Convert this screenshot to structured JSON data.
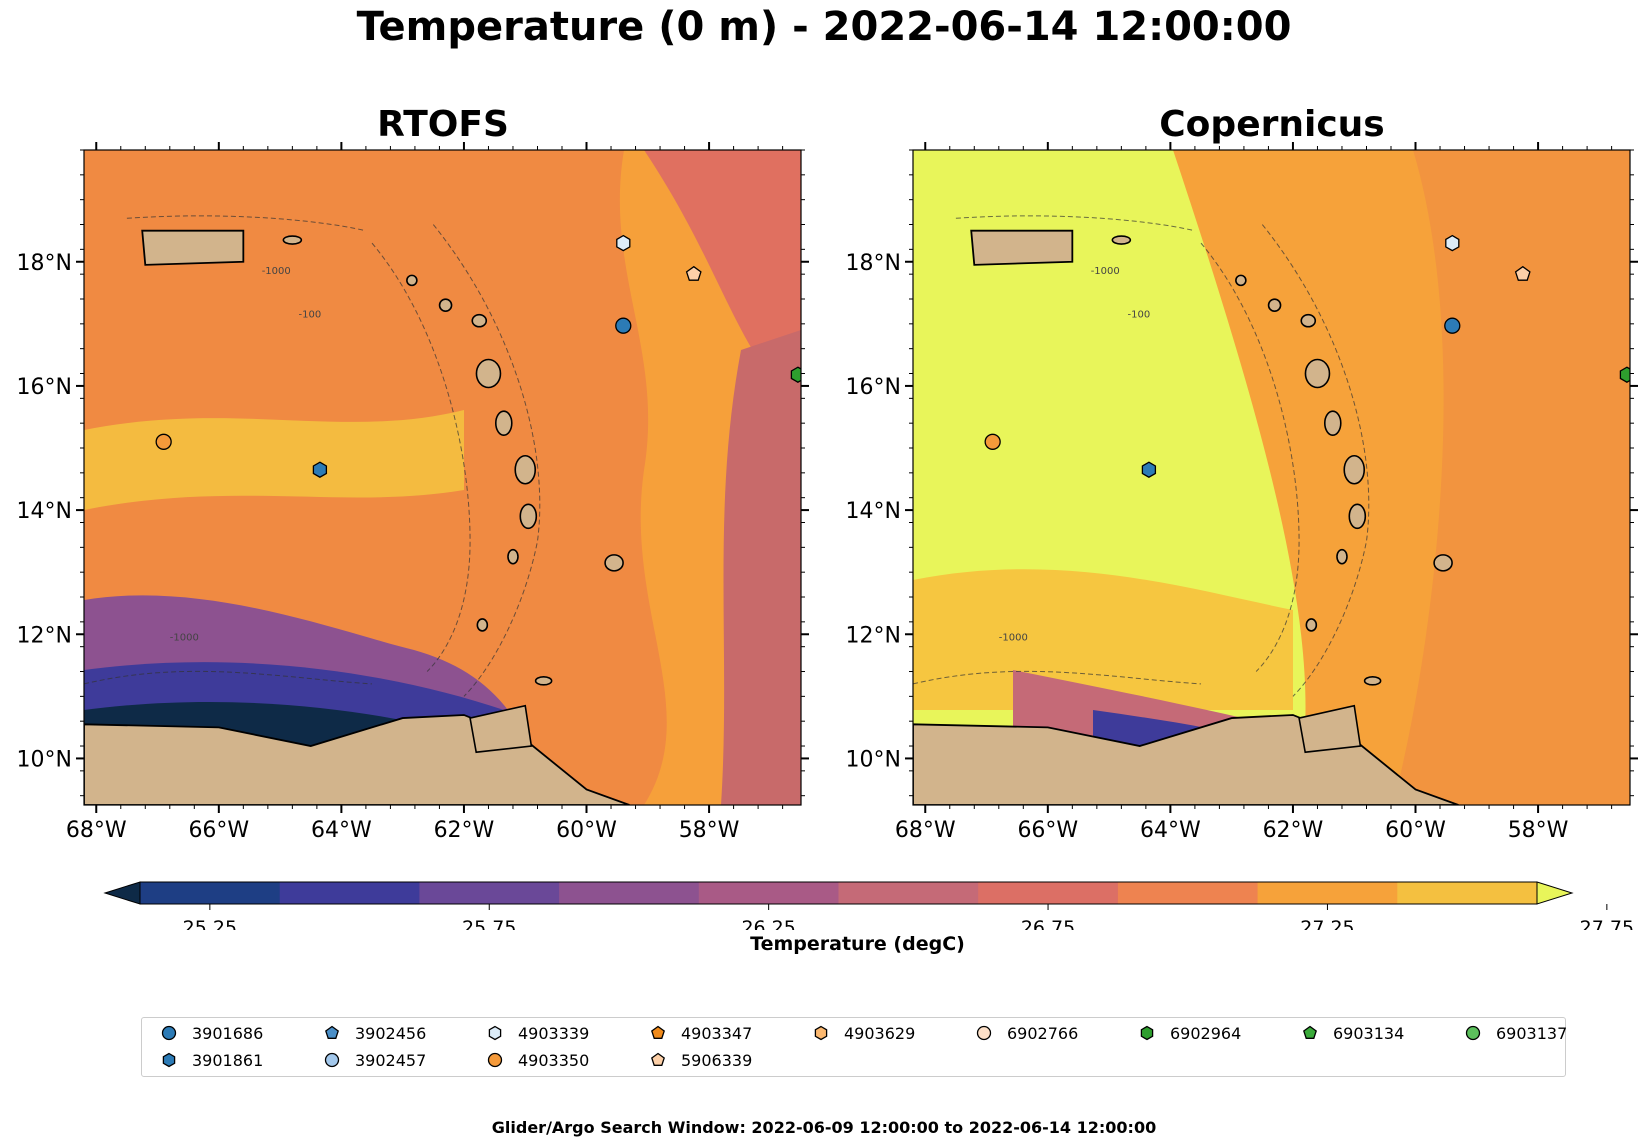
{
  "title": "Temperature (0 m) - 2022-06-14 12:00:00",
  "panels": [
    {
      "title": "RTOFS",
      "palette": [
        "#f08a42",
        "#f6a23a",
        "#f4c040",
        "#e07060",
        "#c86a6a"
      ]
    },
    {
      "title": "Copernicus",
      "palette": [
        "#e8f55a",
        "#f6c640",
        "#f6a23a",
        "#f08a42",
        "#e07060"
      ]
    }
  ],
  "axes": {
    "x_ticks": [
      "68°W",
      "66°W",
      "64°W",
      "62°W",
      "60°W",
      "58°W"
    ],
    "y_ticks": [
      "18°N",
      "16°N",
      "14°N",
      "12°N",
      "10°N"
    ],
    "lon_range": [
      -68.2,
      -56.5
    ],
    "lat_range": [
      9.25,
      19.8
    ]
  },
  "contour_labels": [
    "-1000",
    "-100",
    "-1000"
  ],
  "colorbar": {
    "label": "Temperature (degC)",
    "ticks": [
      "25.25",
      "25.75",
      "26.25",
      "26.75",
      "27.25",
      "27.75"
    ],
    "colors": [
      "#0e2a47",
      "#1e3e84",
      "#3e3b9a",
      "#6a4898",
      "#8d5290",
      "#a95a86",
      "#c56a77",
      "#dc6f65",
      "#ee8350",
      "#f6a23a",
      "#f4c040",
      "#e8f55a"
    ],
    "extend": "both"
  },
  "legend": {
    "items": [
      {
        "label": "3901686",
        "marker": "circle",
        "color": "#2c7bb6"
      },
      {
        "label": "3901861",
        "marker": "hexagon",
        "color": "#2c7bb6"
      },
      {
        "label": "3902456",
        "marker": "pentagon",
        "color": "#4a8fc8"
      },
      {
        "label": "3902457",
        "marker": "circle",
        "color": "#a3c8ec"
      },
      {
        "label": "4903339",
        "marker": "hexagon",
        "color": "#dcecf8"
      },
      {
        "label": "4903347",
        "marker": "pentagon",
        "color": "#f08a1a"
      },
      {
        "label": "4903350",
        "marker": "circle",
        "color": "#f59a3a"
      },
      {
        "label": "4903629",
        "marker": "hexagon",
        "color": "#fbb870"
      },
      {
        "label": "5906339",
        "marker": "pentagon",
        "color": "#fdd0a8"
      },
      {
        "label": "6902766",
        "marker": "circle",
        "color": "#fde0c8"
      },
      {
        "label": "6902964",
        "marker": "hexagon",
        "color": "#2e9e2e"
      },
      {
        "label": "6903134",
        "marker": "pentagon",
        "color": "#3aaa3a"
      },
      {
        "label": "6903137",
        "marker": "circle",
        "color": "#5cc05c"
      }
    ]
  },
  "floats_on_map": [
    {
      "id": "3901686",
      "lon": -59.4,
      "lat": 16.97,
      "marker": "circle",
      "color": "#2c7bb6"
    },
    {
      "id": "3901861",
      "lon": -64.35,
      "lat": 14.65,
      "marker": "hexagon",
      "color": "#2c7bb6"
    },
    {
      "id": "4903339",
      "lon": -59.4,
      "lat": 18.3,
      "marker": "hexagon",
      "color": "#dcecf8"
    },
    {
      "id": "5906339",
      "lon": -58.25,
      "lat": 17.8,
      "marker": "pentagon",
      "color": "#fdd0a8"
    },
    {
      "id": "4903350",
      "lon": -66.9,
      "lat": 15.1,
      "marker": "circle",
      "color": "#f59a3a"
    },
    {
      "id": "6902964",
      "lon": -56.55,
      "lat": 16.18,
      "marker": "hexagon",
      "color": "#2e9e2e"
    }
  ],
  "footer": "Glider/Argo Search Window: 2022-06-09 12:00:00 to 2022-06-14 12:00:00"
}
